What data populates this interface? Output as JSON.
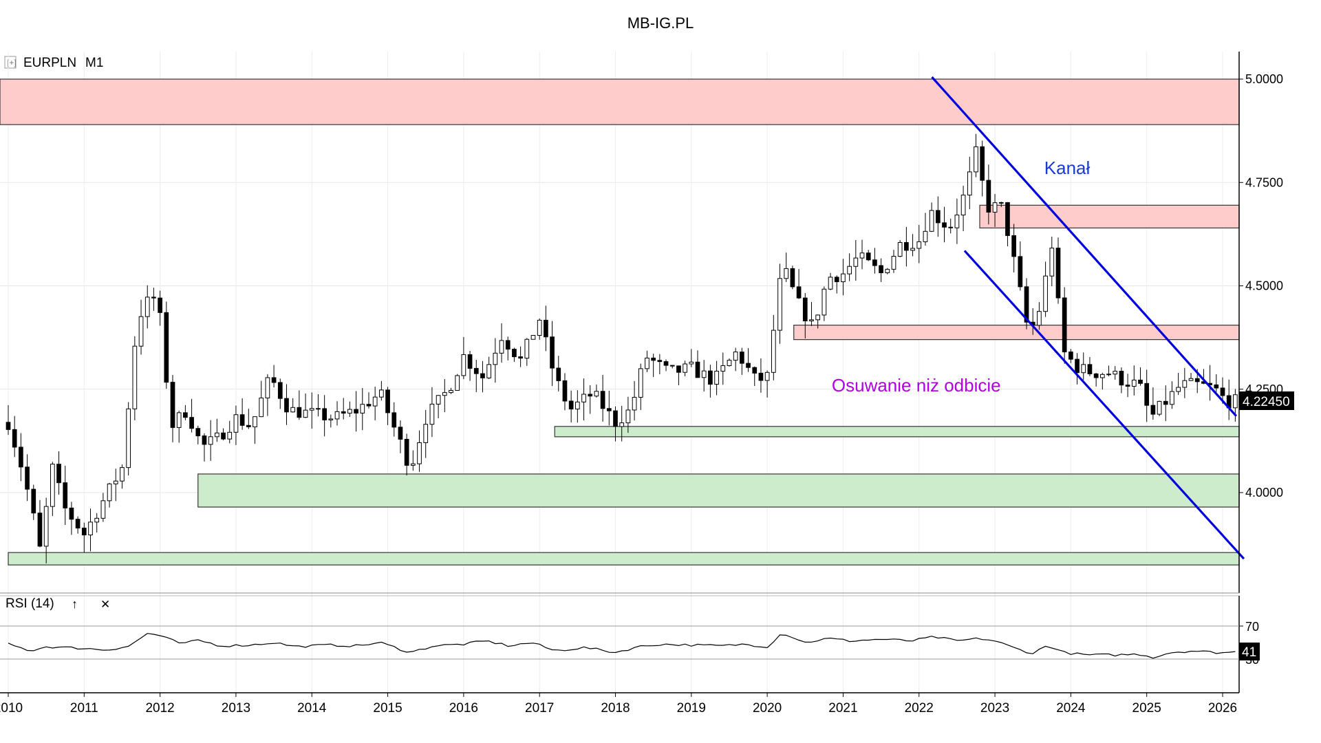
{
  "header": {
    "title": "MB-IG.PL"
  },
  "panel": {
    "symbol": "EURPLN",
    "timeframe": "M1",
    "expand_glyph": "[+]"
  },
  "rsi_panel": {
    "label": "RSI (14)",
    "up_glyph": "↑",
    "close_glyph": "✕",
    "current_value": "41"
  },
  "colors": {
    "resistance": "#ffcccc",
    "support": "#cceccc",
    "channel": "#0000dd",
    "annotation_purple": "#b000e0",
    "annotation_blue": "#1a3ad0"
  },
  "chart_data": {
    "type": "candlestick",
    "symbol": "EURPLN",
    "timeframe": "M1",
    "ylim": [
      3.78,
      5.07
    ],
    "y_ticks": [
      {
        "value": 5.0,
        "label": "5.0000"
      },
      {
        "value": 4.75,
        "label": "4.7500"
      },
      {
        "value": 4.5,
        "label": "4.5000"
      },
      {
        "value": 4.25,
        "label": "4.2500"
      },
      {
        "value": 4.0,
        "label": "4.0000"
      }
    ],
    "x_range": [
      2010.0,
      2026.28
    ],
    "x_ticks": [
      "2010",
      "2011",
      "2012",
      "2013",
      "2014",
      "2015",
      "2016",
      "2017",
      "2018",
      "2019",
      "2020",
      "2021",
      "2022",
      "2023",
      "2024",
      "2025",
      "2026"
    ],
    "last_price": "4.22450",
    "resistance_zones": [
      {
        "x0": 2009.8,
        "x1": 2026.28,
        "low": 4.89,
        "high": 5.0
      },
      {
        "x0": 2022.8,
        "x1": 2026.28,
        "low": 4.64,
        "high": 4.695
      },
      {
        "x0": 2020.35,
        "x1": 2026.28,
        "low": 4.37,
        "high": 4.405
      }
    ],
    "support_zones": [
      {
        "x0": 2017.2,
        "x1": 2026.28,
        "low": 4.135,
        "high": 4.16
      },
      {
        "x0": 2012.5,
        "x1": 2026.28,
        "low": 3.965,
        "high": 4.045
      },
      {
        "x0": 2010.0,
        "x1": 2026.28,
        "low": 3.825,
        "high": 3.855
      }
    ],
    "channel_lines": [
      {
        "x0": 2022.17,
        "y0": 5.005,
        "x1": 2026.18,
        "y1": 4.185
      },
      {
        "x0": 2022.6,
        "y0": 4.585,
        "x1": 2026.28,
        "y1": 3.84
      }
    ],
    "annotations": [
      {
        "text": "Kanał",
        "x": 2023.65,
        "y": 4.77,
        "color": "#1a3ad0"
      },
      {
        "text": "Osuwanie niż odbicie",
        "x": 2020.85,
        "y": 4.245,
        "color": "#b000e0"
      }
    ],
    "anchors": [
      [
        2010.0,
        4.17
      ],
      [
        2010.15,
        4.08
      ],
      [
        2010.3,
        3.97
      ],
      [
        2010.42,
        3.86
      ],
      [
        2010.58,
        4.06
      ],
      [
        2010.75,
        3.96
      ],
      [
        2011.0,
        3.9
      ],
      [
        2011.25,
        3.98
      ],
      [
        2011.5,
        4.06
      ],
      [
        2011.7,
        4.42
      ],
      [
        2011.9,
        4.48
      ],
      [
        2012.0,
        4.42
      ],
      [
        2012.15,
        4.16
      ],
      [
        2012.35,
        4.2
      ],
      [
        2012.55,
        4.11
      ],
      [
        2012.75,
        4.13
      ],
      [
        2013.0,
        4.18
      ],
      [
        2013.2,
        4.16
      ],
      [
        2013.45,
        4.28
      ],
      [
        2013.7,
        4.2
      ],
      [
        2014.0,
        4.19
      ],
      [
        2014.3,
        4.18
      ],
      [
        2014.6,
        4.2
      ],
      [
        2014.9,
        4.24
      ],
      [
        2015.1,
        4.15
      ],
      [
        2015.3,
        4.06
      ],
      [
        2015.5,
        4.18
      ],
      [
        2015.8,
        4.25
      ],
      [
        2016.0,
        4.33
      ],
      [
        2016.25,
        4.28
      ],
      [
        2016.5,
        4.38
      ],
      [
        2016.75,
        4.32
      ],
      [
        2017.0,
        4.42
      ],
      [
        2017.2,
        4.28
      ],
      [
        2017.4,
        4.2
      ],
      [
        2017.7,
        4.24
      ],
      [
        2018.0,
        4.17
      ],
      [
        2018.2,
        4.2
      ],
      [
        2018.4,
        4.33
      ],
      [
        2018.7,
        4.29
      ],
      [
        2019.0,
        4.3
      ],
      [
        2019.3,
        4.27
      ],
      [
        2019.6,
        4.34
      ],
      [
        2019.85,
        4.27
      ],
      [
        2020.0,
        4.28
      ],
      [
        2020.2,
        4.55
      ],
      [
        2020.4,
        4.46
      ],
      [
        2020.6,
        4.4
      ],
      [
        2020.8,
        4.52
      ],
      [
        2021.0,
        4.53
      ],
      [
        2021.2,
        4.57
      ],
      [
        2021.5,
        4.53
      ],
      [
        2021.75,
        4.6
      ],
      [
        2022.0,
        4.61
      ],
      [
        2022.15,
        4.68
      ],
      [
        2022.4,
        4.64
      ],
      [
        2022.6,
        4.72
      ],
      [
        2022.75,
        4.82
      ],
      [
        2022.9,
        4.69
      ],
      [
        2023.1,
        4.69
      ],
      [
        2023.25,
        4.56
      ],
      [
        2023.45,
        4.38
      ],
      [
        2023.6,
        4.45
      ],
      [
        2023.75,
        4.6
      ],
      [
        2023.9,
        4.34
      ],
      [
        2024.1,
        4.3
      ],
      [
        2024.3,
        4.29
      ],
      [
        2024.5,
        4.29
      ],
      [
        2024.7,
        4.27
      ],
      [
        2024.9,
        4.26
      ],
      [
        2025.05,
        4.18
      ],
      [
        2025.25,
        4.22
      ],
      [
        2025.45,
        4.26
      ],
      [
        2025.7,
        4.26
      ],
      [
        2025.9,
        4.25
      ],
      [
        2026.0,
        4.23
      ],
      [
        2026.1,
        4.22
      ]
    ],
    "rsi": {
      "levels": [
        70,
        30
      ],
      "level_labels": [
        "70",
        "30"
      ],
      "current": 41,
      "anchors": [
        [
          2010.0,
          48
        ],
        [
          2010.3,
          40
        ],
        [
          2010.5,
          45
        ],
        [
          2011.0,
          43
        ],
        [
          2011.3,
          41
        ],
        [
          2011.6,
          46
        ],
        [
          2011.85,
          62
        ],
        [
          2012.0,
          58
        ],
        [
          2012.3,
          48
        ],
        [
          2012.5,
          53
        ],
        [
          2012.8,
          46
        ],
        [
          2013.2,
          47
        ],
        [
          2013.5,
          50
        ],
        [
          2013.8,
          45
        ],
        [
          2014.2,
          47
        ],
        [
          2014.6,
          46
        ],
        [
          2014.9,
          50
        ],
        [
          2015.3,
          38
        ],
        [
          2015.6,
          46
        ],
        [
          2016.0,
          48
        ],
        [
          2016.3,
          52
        ],
        [
          2016.6,
          46
        ],
        [
          2016.9,
          50
        ],
        [
          2017.2,
          40
        ],
        [
          2017.6,
          44
        ],
        [
          2018.0,
          38
        ],
        [
          2018.3,
          45
        ],
        [
          2018.6,
          48
        ],
        [
          2019.0,
          47
        ],
        [
          2019.4,
          46
        ],
        [
          2019.7,
          48
        ],
        [
          2020.0,
          45
        ],
        [
          2020.2,
          62
        ],
        [
          2020.5,
          50
        ],
        [
          2020.8,
          55
        ],
        [
          2021.1,
          52
        ],
        [
          2021.5,
          54
        ],
        [
          2021.9,
          52
        ],
        [
          2022.2,
          57
        ],
        [
          2022.5,
          52
        ],
        [
          2022.8,
          55
        ],
        [
          2023.0,
          52
        ],
        [
          2023.3,
          42
        ],
        [
          2023.5,
          37
        ],
        [
          2023.7,
          47
        ],
        [
          2023.9,
          38
        ],
        [
          2024.2,
          35
        ],
        [
          2024.6,
          35
        ],
        [
          2024.9,
          36
        ],
        [
          2025.1,
          32
        ],
        [
          2025.3,
          38
        ],
        [
          2025.6,
          40
        ],
        [
          2025.9,
          38
        ],
        [
          2026.1,
          38
        ],
        [
          2026.2,
          39
        ]
      ]
    }
  }
}
